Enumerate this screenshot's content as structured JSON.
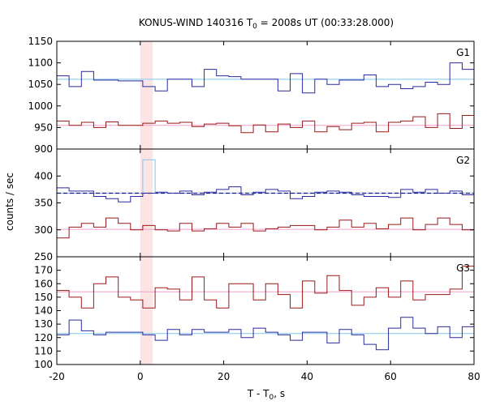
{
  "chart_data": {
    "type": "line",
    "title": "KONUS-WIND 140316 T",
    "title_sub": "0",
    "title_rest": " = 2008s UT (00:33:28.000)",
    "xlabel": "T - T",
    "xlabel_sub": "0",
    "xlabel_rest": ", s",
    "ylabel": "counts / sec",
    "xlim": [
      -20,
      80
    ],
    "x_ticks": [
      -20,
      0,
      20,
      40,
      60,
      80
    ],
    "highlight_x": [
      0,
      3
    ],
    "highlight_color": "#fde4e4",
    "bin_start": -20,
    "bin_width": 2.944,
    "panels": [
      {
        "name": "G1",
        "ylim": [
          900,
          1150
        ],
        "y_ticks": [
          900,
          950,
          1000,
          1050,
          1100,
          1150
        ],
        "series": [
          {
            "color": "#2a2aa0",
            "values": [
              1070,
              1045,
              1080,
              1060,
              1060,
              1058,
              1058,
              1045,
              1035,
              1062,
              1062,
              1045,
              1085,
              1070,
              1068,
              1062,
              1062,
              1062,
              1035,
              1075,
              1030,
              1062,
              1050,
              1060,
              1060,
              1072,
              1045,
              1050,
              1040,
              1045,
              1055,
              1050,
              1100,
              1085,
              1060,
              1035,
              1055,
              1065,
              1070,
              1060,
              1045,
              1050,
              1055,
              1040,
              1065,
              1065,
              1055,
              1050,
              1052
            ]
          },
          {
            "color": "#9b1818",
            "values": [
              965,
              955,
              962,
              950,
              963,
              955,
              955,
              960,
              965,
              960,
              962,
              952,
              958,
              960,
              954,
              938,
              956,
              940,
              958,
              950,
              965,
              940,
              952,
              945,
              960,
              962,
              940,
              962,
              965,
              975,
              950,
              982,
              948,
              978,
              985,
              988,
              988,
              955,
              958,
              962,
              962,
              948,
              972,
              948,
              945,
              968,
              955,
              958,
              968
            ]
          }
        ],
        "fits": [
          {
            "color": "#7ec8ec",
            "value": 1062
          },
          {
            "color": "#f0a0cc",
            "value": 955
          }
        ]
      },
      {
        "name": "G2",
        "ylim": [
          250,
          450
        ],
        "y_ticks": [
          250,
          300,
          350,
          400
        ],
        "series": [
          {
            "color": "#2a2aa0",
            "values": [
              378,
              372,
              372,
              362,
              358,
              352,
              362,
              368,
              370,
              368,
              372,
              365,
              370,
              375,
              380,
              365,
              370,
              375,
              372,
              358,
              362,
              370,
              372,
              370,
              365,
              362,
              362,
              360,
              375,
              370,
              375,
              368,
              372,
              365,
              370,
              375,
              372,
              365,
              370,
              378,
              372,
              368,
              365,
              372,
              362,
              365,
              368,
              370,
              368
            ]
          },
          {
            "color": "#9b1818",
            "values": [
              285,
              305,
              312,
              305,
              322,
              312,
              300,
              308,
              300,
              298,
              312,
              298,
              302,
              312,
              305,
              312,
              298,
              302,
              305,
              308,
              308,
              300,
              305,
              318,
              305,
              312,
              302,
              310,
              322,
              300,
              310,
              322,
              310,
              300,
              298,
              318,
              308,
              300,
              290,
              312,
              305,
              308,
              295,
              302,
              312,
              305,
              305,
              322,
              280
            ]
          },
          {
            "color": "#7ec8ec",
            "values": [
              null,
              null,
              null,
              null,
              null,
              null,
              null,
              430,
              null,
              null,
              null,
              null,
              null,
              null,
              null,
              null,
              null,
              null,
              null,
              null,
              null,
              null,
              null,
              null,
              null,
              null,
              null,
              null,
              null,
              null,
              null,
              null,
              null,
              null,
              null,
              null,
              null,
              null,
              null,
              null,
              null,
              null,
              null,
              null,
              null,
              null,
              null,
              null,
              null
            ]
          }
        ],
        "fits": [
          {
            "color": "#7ec8ec",
            "value": 368
          },
          {
            "color": "#f0a0cc",
            "value": 301
          },
          {
            "color": "#1a1a7a",
            "value": 368,
            "dashed": true
          }
        ]
      },
      {
        "name": "G3",
        "ylim": [
          100,
          180
        ],
        "y_ticks": [
          100,
          110,
          120,
          130,
          140,
          150,
          160,
          170
        ],
        "series": [
          {
            "color": "#9b1818",
            "values": [
              155,
              150,
              142,
              160,
              165,
              150,
              148,
              142,
              157,
              156,
              148,
              165,
              148,
              142,
              160,
              160,
              148,
              160,
              152,
              142,
              162,
              153,
              166,
              155,
              144,
              150,
              157,
              150,
              162,
              148,
              152,
              152,
              156,
              173,
              148,
              147,
              150,
              141,
              148,
              157,
              164,
              158,
              145,
              160,
              155,
              148,
              150,
              160,
              142
            ]
          },
          {
            "color": "#2a2aa0",
            "values": [
              122,
              133,
              125,
              122,
              124,
              124,
              124,
              122,
              118,
              126,
              122,
              126,
              124,
              124,
              126,
              120,
              127,
              124,
              122,
              118,
              124,
              124,
              116,
              126,
              122,
              115,
              111,
              127,
              135,
              127,
              123,
              128,
              120,
              128,
              127,
              127,
              118,
              124,
              126,
              128,
              121,
              124,
              128,
              122,
              127,
              120,
              120,
              125,
              124
            ]
          }
        ],
        "fits": [
          {
            "color": "#7ec8ec",
            "value": 123
          },
          {
            "color": "#f0a0cc",
            "value": 154
          }
        ]
      }
    ]
  }
}
